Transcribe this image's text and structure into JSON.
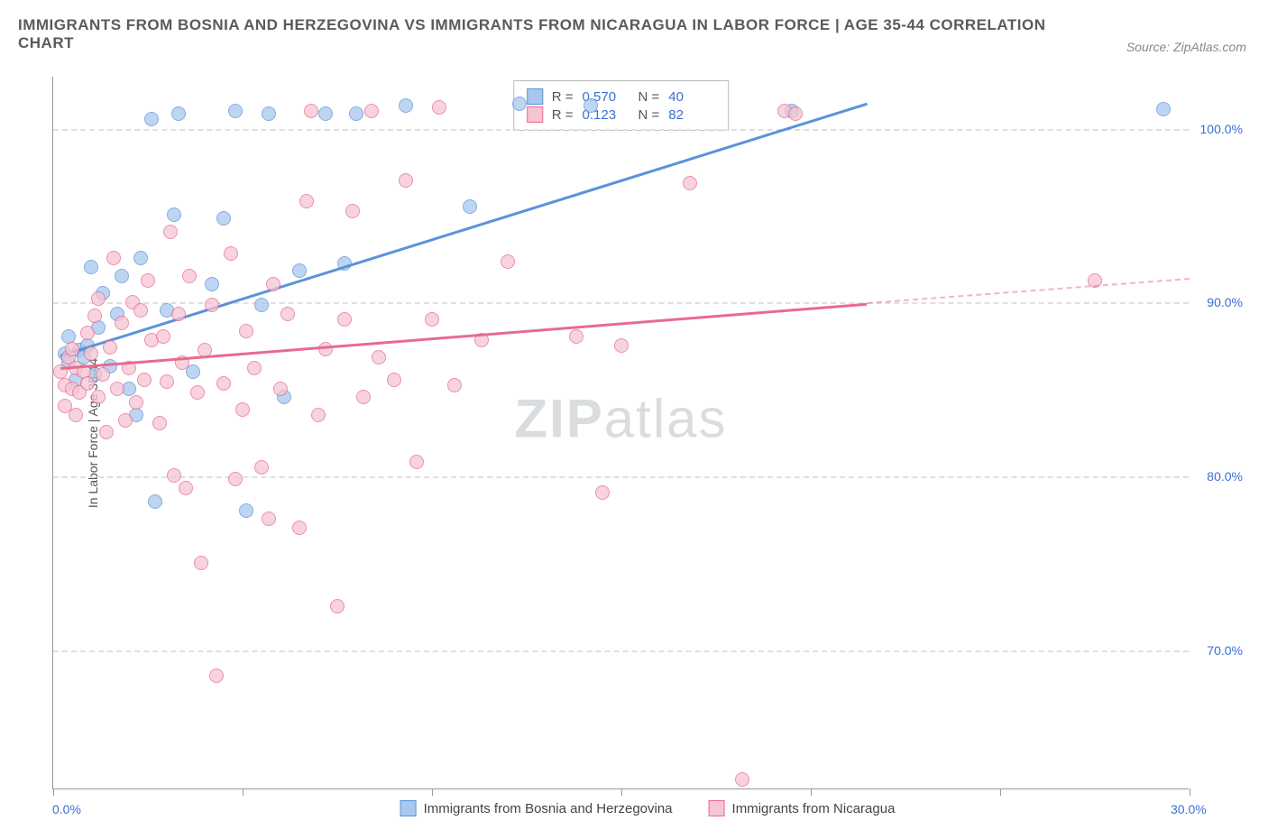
{
  "title": "IMMIGRANTS FROM BOSNIA AND HERZEGOVINA VS IMMIGRANTS FROM NICARAGUA IN LABOR FORCE | AGE 35-44 CORRELATION CHART",
  "source": "Source: ZipAtlas.com",
  "watermark_bold": "ZIP",
  "watermark_light": "atlas",
  "chart": {
    "type": "scatter",
    "ylabel": "In Labor Force | Age 35-44",
    "xlim": [
      0,
      30
    ],
    "ylim": [
      62,
      103
    ],
    "yticks": [
      70,
      80,
      90,
      100
    ],
    "ytick_labels": [
      "70.0%",
      "80.0%",
      "90.0%",
      "100.0%"
    ],
    "ytick_color": "#3b6fd4",
    "xticks": [
      0,
      5,
      10,
      15,
      20,
      25,
      30
    ],
    "xtick_left_label": "0.0%",
    "xtick_right_label": "30.0%",
    "xtick_color": "#3b6fd4",
    "grid_color": "#e0e0e0",
    "background_color": "#ffffff",
    "marker_radius": 8,
    "marker_stroke_width": 1.5,
    "series": [
      {
        "name": "Immigrants from Bosnia and Herzegovina",
        "color_fill": "#a9c7ee",
        "color_stroke": "#5a93d9",
        "r": "0.570",
        "n": "40",
        "trend": {
          "x0": 0.2,
          "y0": 87.0,
          "x1": 21.5,
          "y1": 101.5,
          "dash_x1": 21.5,
          "dash_y1": 101.5
        },
        "points": [
          [
            0.3,
            87.0
          ],
          [
            0.4,
            88.0
          ],
          [
            0.4,
            86.5
          ],
          [
            0.6,
            85.5
          ],
          [
            0.7,
            87.2
          ],
          [
            0.8,
            86.8
          ],
          [
            0.9,
            87.5
          ],
          [
            1.0,
            92.0
          ],
          [
            1.1,
            85.8
          ],
          [
            1.2,
            88.5
          ],
          [
            1.3,
            90.5
          ],
          [
            1.5,
            86.3
          ],
          [
            1.7,
            89.3
          ],
          [
            1.8,
            91.5
          ],
          [
            2.0,
            85.0
          ],
          [
            2.2,
            83.5
          ],
          [
            2.3,
            92.5
          ],
          [
            2.6,
            100.5
          ],
          [
            2.7,
            78.5
          ],
          [
            3.0,
            89.5
          ],
          [
            3.2,
            95.0
          ],
          [
            3.3,
            100.8
          ],
          [
            3.7,
            86.0
          ],
          [
            4.2,
            91.0
          ],
          [
            4.5,
            94.8
          ],
          [
            4.8,
            101.0
          ],
          [
            5.1,
            78.0
          ],
          [
            5.5,
            89.8
          ],
          [
            5.7,
            100.8
          ],
          [
            6.1,
            84.5
          ],
          [
            6.5,
            91.8
          ],
          [
            7.2,
            100.8
          ],
          [
            7.7,
            92.2
          ],
          [
            8.0,
            100.8
          ],
          [
            9.3,
            101.3
          ],
          [
            11.0,
            95.5
          ],
          [
            12.3,
            101.4
          ],
          [
            14.2,
            101.3
          ],
          [
            19.5,
            101.0
          ],
          [
            29.3,
            101.1
          ]
        ]
      },
      {
        "name": "Immigrants from Nicaragua",
        "color_fill": "#f5c5d3",
        "color_stroke": "#e96a8f",
        "r": "0.123",
        "n": "82",
        "trend": {
          "x0": 0.2,
          "y0": 86.3,
          "x1": 21.5,
          "y1": 90.0,
          "dash_x1": 30.0,
          "dash_y1": 91.4
        },
        "points": [
          [
            0.2,
            86.0
          ],
          [
            0.3,
            85.2
          ],
          [
            0.3,
            84.0
          ],
          [
            0.4,
            86.8
          ],
          [
            0.5,
            85.0
          ],
          [
            0.5,
            87.3
          ],
          [
            0.6,
            83.5
          ],
          [
            0.6,
            86.2
          ],
          [
            0.7,
            84.8
          ],
          [
            0.8,
            86.0
          ],
          [
            0.9,
            88.2
          ],
          [
            0.9,
            85.3
          ],
          [
            1.0,
            87.0
          ],
          [
            1.1,
            89.2
          ],
          [
            1.2,
            84.5
          ],
          [
            1.2,
            90.2
          ],
          [
            1.3,
            85.8
          ],
          [
            1.4,
            82.5
          ],
          [
            1.5,
            87.4
          ],
          [
            1.6,
            92.5
          ],
          [
            1.7,
            85.0
          ],
          [
            1.8,
            88.8
          ],
          [
            1.9,
            83.2
          ],
          [
            2.0,
            86.2
          ],
          [
            2.1,
            90.0
          ],
          [
            2.2,
            84.2
          ],
          [
            2.3,
            89.5
          ],
          [
            2.4,
            85.5
          ],
          [
            2.5,
            91.2
          ],
          [
            2.6,
            87.8
          ],
          [
            2.8,
            83.0
          ],
          [
            2.9,
            88.0
          ],
          [
            3.0,
            85.4
          ],
          [
            3.1,
            94.0
          ],
          [
            3.2,
            80.0
          ],
          [
            3.3,
            89.3
          ],
          [
            3.4,
            86.5
          ],
          [
            3.5,
            79.3
          ],
          [
            3.6,
            91.5
          ],
          [
            3.8,
            84.8
          ],
          [
            3.9,
            75.0
          ],
          [
            4.0,
            87.2
          ],
          [
            4.2,
            89.8
          ],
          [
            4.3,
            68.5
          ],
          [
            4.5,
            85.3
          ],
          [
            4.7,
            92.8
          ],
          [
            4.8,
            79.8
          ],
          [
            5.0,
            83.8
          ],
          [
            5.1,
            88.3
          ],
          [
            5.3,
            86.2
          ],
          [
            5.5,
            80.5
          ],
          [
            5.7,
            77.5
          ],
          [
            5.8,
            91.0
          ],
          [
            6.0,
            85.0
          ],
          [
            6.2,
            89.3
          ],
          [
            6.5,
            77.0
          ],
          [
            6.7,
            95.8
          ],
          [
            6.8,
            101.0
          ],
          [
            7.0,
            83.5
          ],
          [
            7.2,
            87.3
          ],
          [
            7.5,
            72.5
          ],
          [
            7.7,
            89.0
          ],
          [
            7.9,
            95.2
          ],
          [
            8.2,
            84.5
          ],
          [
            8.4,
            101.0
          ],
          [
            8.6,
            86.8
          ],
          [
            9.0,
            85.5
          ],
          [
            9.3,
            97.0
          ],
          [
            9.6,
            80.8
          ],
          [
            10.0,
            89.0
          ],
          [
            10.2,
            101.2
          ],
          [
            10.6,
            85.2
          ],
          [
            11.3,
            87.8
          ],
          [
            12.0,
            92.3
          ],
          [
            13.8,
            88.0
          ],
          [
            14.5,
            79.0
          ],
          [
            15.0,
            87.5
          ],
          [
            16.8,
            96.8
          ],
          [
            18.2,
            62.5
          ],
          [
            19.3,
            101.0
          ],
          [
            19.6,
            100.8
          ],
          [
            27.5,
            91.2
          ]
        ]
      }
    ],
    "stats_labels": {
      "r_prefix": "R =",
      "n_prefix": "N ="
    }
  },
  "legend": {
    "series1": "Immigrants from Bosnia and Herzegovina",
    "series2": "Immigrants from Nicaragua"
  }
}
